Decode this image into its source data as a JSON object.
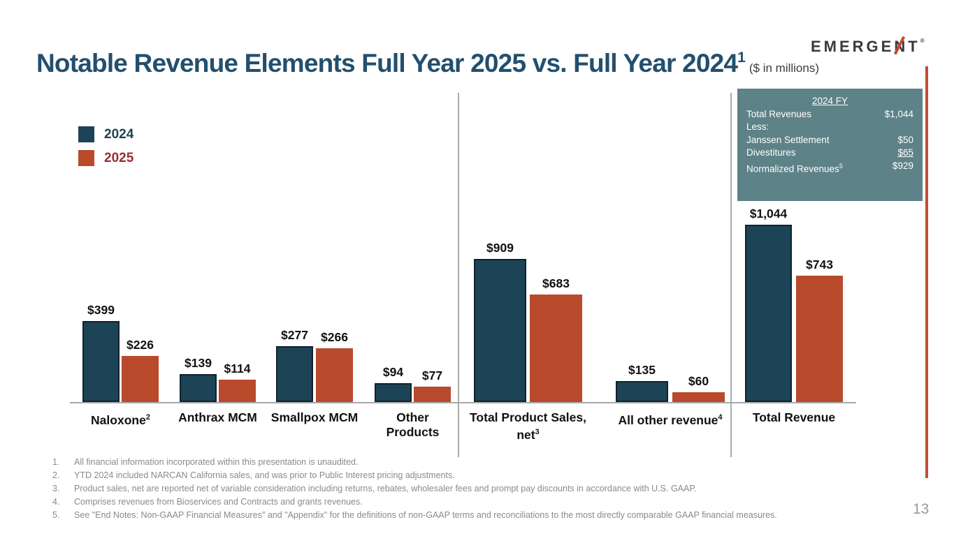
{
  "slide": {
    "title": "Notable Revenue Elements Full Year 2025 vs. Full Year 2024",
    "title_sup": "1",
    "title_suffix": "($ in millions)",
    "logo_text_left": "EMERGE",
    "logo_text_n": "N",
    "logo_text_right": "T",
    "logo_reg": "®",
    "page_number": "13"
  },
  "colors": {
    "series_2024": "#1d4356",
    "series_2025": "#b94a2c",
    "legend_2024_text": "#1d4356",
    "legend_2025_text": "#9e2b33",
    "title": "#234f6e",
    "summary_bg": "#5d8287",
    "accent_red": "#c0502f",
    "axis_gray": "#a8a8a8"
  },
  "legend": [
    {
      "label": "2024",
      "swatch": "#1d4356",
      "text": "#1d4356"
    },
    {
      "label": "2025",
      "swatch": "#b94a2c",
      "text": "#9e2b33"
    }
  ],
  "summary_box": {
    "header": "2024 FY",
    "rows": [
      {
        "label": "Total Revenues",
        "label_sup": "",
        "value": "$1,044",
        "underline_value": false
      },
      {
        "label": "Less:",
        "label_sup": "",
        "value": "",
        "underline_value": false
      },
      {
        "label": "Janssen Settlement",
        "label_sup": "",
        "value": "$50",
        "underline_value": false
      },
      {
        "label": "Divestitures",
        "label_sup": "",
        "value": "$65",
        "underline_value": true
      },
      {
        "label": "Normalized Revenues",
        "label_sup": "5",
        "value": "$929",
        "underline_value": false
      }
    ]
  },
  "chart_data": {
    "type": "bar",
    "title": "Notable Revenue Elements Full Year 2025 vs. Full Year 2024",
    "unit": "$ in millions",
    "grid": false,
    "legend_position": "top-left",
    "series": [
      {
        "name": "2024",
        "color": "#1d4356"
      },
      {
        "name": "2025",
        "color": "#b94a2c"
      }
    ],
    "categories": [
      "Naloxone",
      "Anthrax MCM",
      "Smallpox MCM",
      "Other Products",
      "Total Product Sales, net",
      "All other revenue",
      "Total Revenue"
    ],
    "groups": [
      {
        "lines": [
          {
            "text": "Naloxone",
            "sup": "2"
          }
        ],
        "values": [
          399,
          226
        ],
        "labels": [
          "$399",
          "$226"
        ]
      },
      {
        "lines": [
          {
            "text": "Anthrax MCM",
            "sup": ""
          }
        ],
        "values": [
          139,
          114
        ],
        "labels": [
          "$139",
          "$114"
        ]
      },
      {
        "lines": [
          {
            "text": "Smallpox MCM",
            "sup": ""
          }
        ],
        "values": [
          277,
          266
        ],
        "labels": [
          "$277",
          "$266"
        ]
      },
      {
        "lines": [
          {
            "text": "Other",
            "sup": ""
          },
          {
            "text": "Products",
            "sup": ""
          }
        ],
        "values": [
          94,
          77
        ],
        "labels": [
          "$94",
          "$77"
        ]
      },
      {
        "lines": [
          {
            "text": "Total Product Sales,",
            "sup": ""
          },
          {
            "text": "net",
            "sup": "3"
          }
        ],
        "values": [
          909,
          683
        ],
        "labels": [
          "$909",
          "$683"
        ]
      },
      {
        "lines": [
          {
            "text": "All other revenue",
            "sup": "4"
          }
        ],
        "values": [
          135,
          60
        ],
        "labels": [
          "$135",
          "$60"
        ]
      },
      {
        "lines": [
          {
            "text": "Total Revenue",
            "sup": ""
          }
        ],
        "values": [
          1044,
          743
        ],
        "labels": [
          "$1,044",
          "$743"
        ]
      }
    ]
  },
  "footnotes": [
    {
      "num": "1.",
      "text": "All financial information incorporated within this presentation is unaudited."
    },
    {
      "num": "2.",
      "text": "YTD 2024 included NARCAN California sales, and was prior to Public Interest pricing adjustments."
    },
    {
      "num": "3.",
      "text": "Product sales, net are reported net of variable consideration including returns, rebates, wholesaler fees and prompt pay discounts in accordance with U.S. GAAP."
    },
    {
      "num": "4.",
      "text": "Comprises revenues from Bioservices  and Contracts and grants revenues."
    },
    {
      "num": "5.",
      "text": "See \"End Notes: Non-GAAP Financial Measures\" and \"Appendix\" for the definitions of non-GAAP terms and reconciliations to the most directly comparable GAAP financial measures."
    }
  ]
}
